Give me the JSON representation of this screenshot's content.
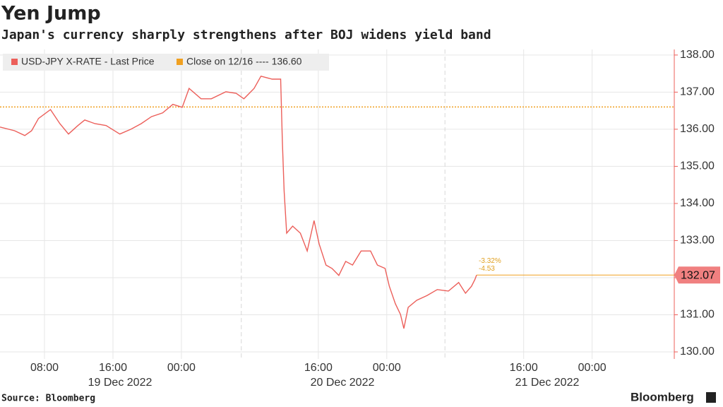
{
  "chart_data": {
    "type": "line",
    "title": "Yen Jump",
    "subtitle": "Japan's currency sharply strengthens after BOJ widens yield band",
    "source": "Source: Bloomberg",
    "brand": "Bloomberg",
    "x": [
      2.8,
      4.5,
      5.7,
      6.5,
      7.3,
      8.7,
      9.8,
      10.8,
      11.9,
      12.7,
      13.9,
      15.2,
      16.8,
      18.1,
      19.3,
      20.5,
      21.8,
      23.0,
      24.1,
      24.9,
      26.3,
      27.5,
      29.2,
      30.4,
      31.3,
      32.5,
      33.3,
      34.6,
      35.6,
      35.8,
      36.0,
      36.3,
      37.0,
      37.9,
      38.7,
      39.5,
      40.1,
      40.9,
      41.6,
      42.4,
      43.2,
      44.0,
      45.0,
      46.1,
      46.9,
      47.8,
      48.3,
      49.0,
      49.6,
      50.0,
      50.5,
      51.5,
      52.7,
      53.9,
      55.2,
      56.4,
      57.2,
      57.9,
      58.3,
      58.5
    ],
    "series": [
      {
        "name": "USD-JPY X-RATE - Last Price",
        "color": "#ec5f5a",
        "values": [
          136.06,
          135.96,
          135.83,
          135.96,
          136.29,
          136.53,
          136.15,
          135.87,
          136.1,
          136.25,
          136.15,
          136.1,
          135.87,
          136.0,
          136.15,
          136.34,
          136.44,
          136.67,
          136.59,
          137.1,
          136.82,
          136.82,
          137.01,
          136.97,
          136.82,
          137.1,
          137.43,
          137.35,
          137.35,
          135.68,
          134.34,
          133.2,
          133.39,
          133.2,
          132.72,
          133.54,
          132.91,
          132.34,
          132.25,
          132.06,
          132.44,
          132.34,
          132.72,
          132.72,
          132.34,
          132.25,
          131.77,
          131.3,
          131.01,
          130.63,
          131.2,
          131.39,
          131.52,
          131.68,
          131.64,
          131.87,
          131.58,
          131.77,
          131.95,
          132.07
        ]
      }
    ],
    "reference_line": {
      "name": "Close on 12/16 ---- 136.60",
      "value": 136.6,
      "color": "#f0a020"
    },
    "last_label": "132.07",
    "annotations": [
      "-3.32%",
      "-4.53"
    ],
    "xlim": [
      2.8,
      81.6
    ],
    "xticks": [
      {
        "value": 8,
        "label": "08:00"
      },
      {
        "value": 16,
        "label": "16:00"
      },
      {
        "value": 24,
        "label": "00:00"
      },
      {
        "value": 40,
        "label": "16:00"
      },
      {
        "value": 48,
        "label": "00:00"
      },
      {
        "value": 64,
        "label": "16:00"
      },
      {
        "value": 72,
        "label": "00:00"
      }
    ],
    "date_labels": [
      "19 Dec 2022",
      "20 Dec 2022",
      "21 Dec 2022"
    ],
    "session_breaks": [
      31,
      54.8
    ],
    "ylim": [
      129.81,
      138.15
    ],
    "yticks": [
      {
        "value": 130,
        "label": "130.00"
      },
      {
        "value": 131,
        "label": "131.00"
      },
      {
        "value": 132,
        "label": "132.00"
      },
      {
        "value": 133,
        "label": "133.00"
      },
      {
        "value": 134,
        "label": "134.00"
      },
      {
        "value": 135,
        "label": "135.00"
      },
      {
        "value": 136,
        "label": "136.00"
      },
      {
        "value": 137,
        "label": "137.00"
      },
      {
        "value": 138,
        "label": "138.00"
      }
    ],
    "grid": true
  }
}
